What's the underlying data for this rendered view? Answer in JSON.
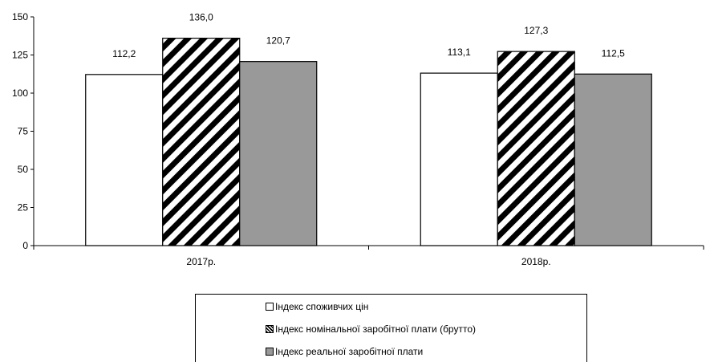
{
  "chart_data": {
    "type": "bar",
    "categories": [
      "2017р.",
      "2018р."
    ],
    "series": [
      {
        "name": "Індекс споживчих цін",
        "values": [
          112.2,
          113.1
        ],
        "labels": [
          "112,2",
          "113,1"
        ],
        "fill": "white"
      },
      {
        "name": "Індекс номінальної заробітної плати (брутто)",
        "values": [
          136.0,
          127.3
        ],
        "labels": [
          "136,0",
          "127,3"
        ],
        "fill": "diagonal-hatch"
      },
      {
        "name": "Індекс реальної заробітної плати",
        "values": [
          120.7,
          112.5
        ],
        "labels": [
          "120,7",
          "112,5"
        ],
        "fill": "gray"
      }
    ],
    "ylim": [
      0,
      150
    ],
    "yticks": [
      "0",
      "25",
      "50",
      "75",
      "100",
      "125",
      "150"
    ],
    "title": "",
    "xlabel": "",
    "ylabel": "",
    "grid": false,
    "legend_position": "bottom",
    "colors": {
      "white": "#ffffff",
      "gray": "#999999",
      "hatch": "#000000",
      "border": "#000000"
    }
  }
}
